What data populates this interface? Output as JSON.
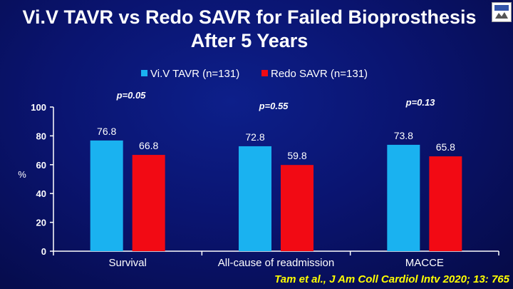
{
  "title_line1": "Vi.V TAVR vs Redo SAVR for Failed Bioprosthesis",
  "title_line2": "After 5 Years",
  "citation": "Tam et al., J Am Coll Cardiol Intv 2020; 13: 765",
  "colors": {
    "background": "#0a1470",
    "series1": "#1ab2f0",
    "series2": "#f20a14",
    "text": "#ffffff",
    "citation": "#ffff00"
  },
  "chart_data": {
    "type": "bar",
    "categories": [
      "Survival",
      "All-cause of readmission",
      "MACCE"
    ],
    "series": [
      {
        "name": "Vi.V TAVR (n=131)",
        "values": [
          76.8,
          72.8,
          73.8
        ],
        "color": "#1ab2f0"
      },
      {
        "name": "Redo SAVR (n=131)",
        "values": [
          66.8,
          59.8,
          65.8
        ],
        "color": "#f20a14"
      }
    ],
    "value_labels": [
      [
        "76.8",
        "72.8",
        "73.8"
      ],
      [
        "66.8",
        "59.8",
        "65.8"
      ]
    ],
    "p_values": [
      "p=0.05",
      "p=0.55",
      "p=0.13"
    ],
    "ylabel": "%",
    "ylim": [
      0,
      100
    ],
    "yticks": [
      0,
      20,
      40,
      60,
      80,
      100
    ],
    "grid": false,
    "legend": "top-center"
  }
}
